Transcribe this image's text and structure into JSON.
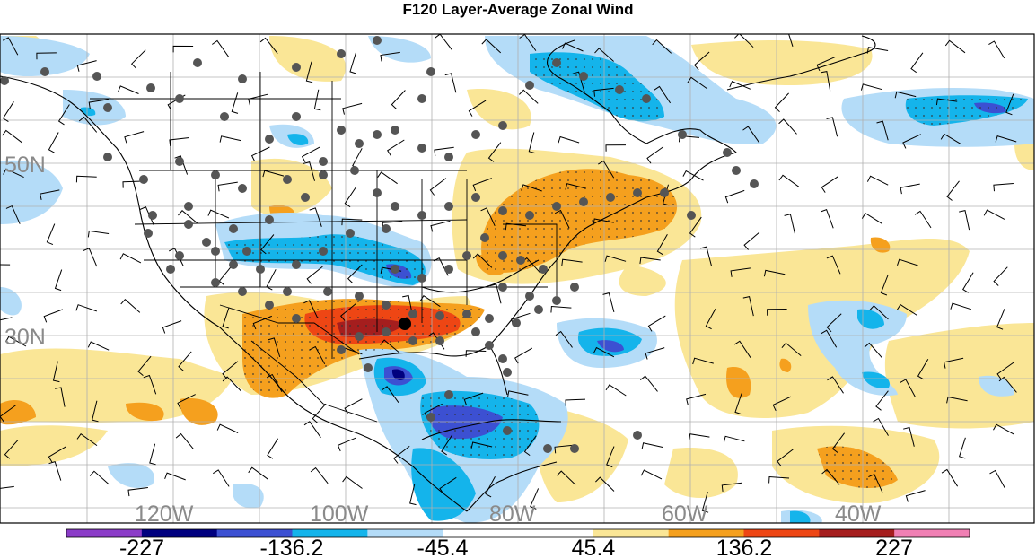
{
  "title": "F120 Layer-Average Zonal Wind",
  "lat_labels": [
    "50N",
    "30N"
  ],
  "lon_labels": [
    "120W",
    "100W",
    "80W",
    "60W",
    "40W"
  ],
  "colorbar": {
    "colors": [
      "#8b3cc8",
      "#00007f",
      "#3c50d2",
      "#14b4eb",
      "#b4dcf8",
      "#ffffff",
      "#ffffff",
      "#fae696",
      "#f5a01e",
      "#ee4614",
      "#a51e1e",
      "#f080b4"
    ],
    "labels": [
      "-227",
      "-136.2",
      "-45.4",
      "45.4",
      "136.2",
      "227"
    ]
  }
}
